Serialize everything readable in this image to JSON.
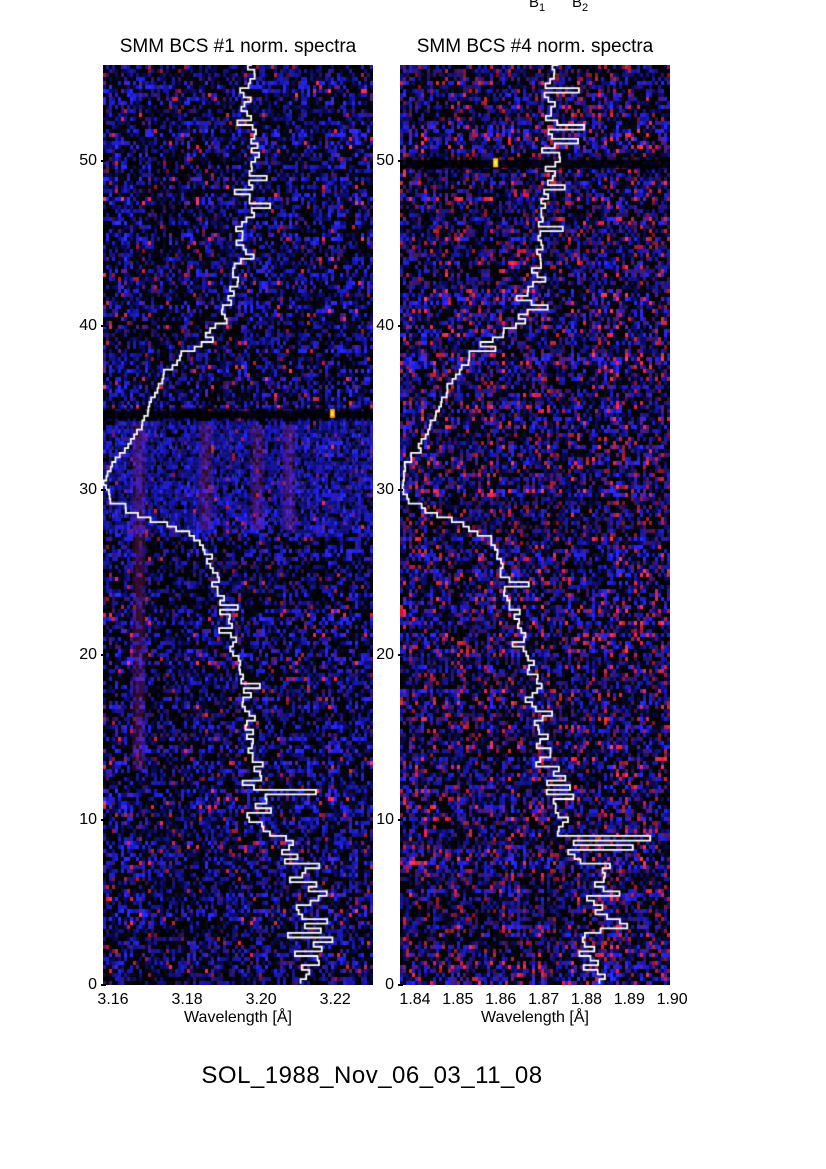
{
  "page": {
    "background": "#ffffff",
    "caption": "SOL_1988_Nov_06_03_11_08"
  },
  "line_labels": [
    {
      "text": "B",
      "sub": "1"
    },
    {
      "text": "B",
      "sub": "2"
    }
  ],
  "chart_data": [
    {
      "type": "heatmap",
      "overlay": "line",
      "title": "SMM BCS #1 norm. spectra",
      "xlabel": "Wavelength [Å]",
      "ylabel": "",
      "legend": "none",
      "grid": false,
      "xlim": [
        3.1573,
        3.2302
      ],
      "ylim": [
        0,
        55.8
      ],
      "xticks": [
        3.16,
        3.18,
        3.2,
        3.22
      ],
      "xtick_labels": [
        "3.16",
        "3.18",
        "3.20",
        "3.22"
      ],
      "yticks": [
        0,
        10,
        20,
        30,
        40,
        50
      ],
      "ytick_labels": [
        "0",
        "10",
        "20",
        "30",
        "40",
        "50"
      ],
      "colormap": {
        "background": "#000000",
        "blue_low": "#0a0a5f",
        "blue_mid": "#1d1dae",
        "blue_high": "#2d2dd8",
        "speckle_red": "#b02040",
        "hot_spot": "#ff9900",
        "trace": "#ffffff"
      },
      "background": {
        "seed": 7,
        "red_density": 0.028,
        "purple_density": 0.06,
        "blue_density": 0.42,
        "bright_band": {
          "v_min": 27.6,
          "v_max": 34.2
        },
        "dark_rows": [
          34.6
        ],
        "stripes": [
          {
            "wl": 3.167,
            "v_min": 13.0,
            "v_max": 34.0
          },
          {
            "wl": 3.185,
            "v_min": 27.6,
            "v_max": 34.0
          },
          {
            "wl": 3.199,
            "v_min": 27.6,
            "v_max": 34.0
          },
          {
            "wl": 3.2075,
            "v_min": 27.6,
            "v_max": 34.0
          }
        ],
        "hot_spots": [
          {
            "wl": 3.2191,
            "v": 34.7
          }
        ]
      },
      "trace": {
        "color": "#ffffff",
        "points": [
          [
            55.8,
            3.197
          ],
          [
            54,
            3.1959
          ],
          [
            52,
            3.1967
          ],
          [
            50,
            3.1978
          ],
          [
            49,
            3.1975
          ],
          [
            48,
            3.1959
          ],
          [
            47,
            3.197
          ],
          [
            46,
            3.1959
          ],
          [
            44.5,
            3.1951
          ],
          [
            43,
            3.1932
          ],
          [
            41.5,
            3.1911
          ],
          [
            40,
            3.1894
          ],
          [
            39,
            3.1848
          ],
          [
            38,
            3.1781
          ],
          [
            37,
            3.174
          ],
          [
            36,
            3.1719
          ],
          [
            35,
            3.17
          ],
          [
            34,
            3.1681
          ],
          [
            33,
            3.1657
          ],
          [
            32,
            3.1619
          ],
          [
            31,
            3.1586
          ],
          [
            30,
            3.1581
          ],
          [
            29.3,
            3.1592
          ],
          [
            28.8,
            3.1614
          ],
          [
            28.3,
            3.1673
          ],
          [
            27.8,
            3.1749
          ],
          [
            27.3,
            3.1797
          ],
          [
            26.7,
            3.183
          ],
          [
            26,
            3.1857
          ],
          [
            25,
            3.1867
          ],
          [
            24,
            3.1881
          ],
          [
            23,
            3.1894
          ],
          [
            22,
            3.1911
          ],
          [
            21,
            3.1921
          ],
          [
            20,
            3.1929
          ],
          [
            19,
            3.194
          ],
          [
            18,
            3.1951
          ],
          [
            17,
            3.1959
          ],
          [
            16,
            3.1965
          ],
          [
            15,
            3.197
          ],
          [
            14,
            3.1973
          ],
          [
            13,
            3.1981
          ],
          [
            12,
            3.2002
          ],
          [
            11,
            3.2019
          ],
          [
            10,
            3.1992
          ],
          [
            9,
            3.2029
          ],
          [
            8,
            3.2064
          ],
          [
            7,
            3.2105
          ],
          [
            6,
            3.2127
          ],
          [
            5,
            3.2145
          ],
          [
            4,
            3.2132
          ],
          [
            3,
            3.214
          ],
          [
            2,
            3.2127
          ],
          [
            1,
            3.2105
          ],
          [
            0,
            3.2097
          ]
        ],
        "noise_amp": [
          [
            0,
            0.008
          ],
          [
            3,
            0.0095
          ],
          [
            8,
            0.0095
          ],
          [
            9,
            0.007
          ],
          [
            13,
            0.007
          ],
          [
            14,
            0.0032
          ],
          [
            18,
            0.0032
          ],
          [
            19,
            0.0027
          ],
          [
            24,
            0.0027
          ],
          [
            25,
            0.0016
          ],
          [
            28,
            0.0011
          ],
          [
            31,
            0.0008
          ],
          [
            37,
            0.0008
          ],
          [
            38,
            0.0022
          ],
          [
            44,
            0.0022
          ],
          [
            45,
            0.0027
          ],
          [
            50,
            0.0027
          ],
          [
            51,
            0.0032
          ],
          [
            55.8,
            0.0032
          ]
        ]
      }
    },
    {
      "type": "heatmap",
      "overlay": "line",
      "title": "SMM BCS #4 norm. spectra",
      "xlabel": "Wavelength [Å]",
      "ylabel": "",
      "legend": "none",
      "grid": false,
      "xlim": [
        1.8365,
        1.8995
      ],
      "ylim": [
        0,
        55.8
      ],
      "xticks": [
        1.84,
        1.85,
        1.86,
        1.87,
        1.88,
        1.89,
        1.9
      ],
      "xtick_labels": [
        "1.84",
        "1.85",
        "1.86",
        "1.87",
        "1.88",
        "1.89",
        "1.90"
      ],
      "yticks": [
        0,
        10,
        20,
        30,
        40,
        50
      ],
      "ytick_labels": [
        "0",
        "10",
        "20",
        "30",
        "40",
        "50"
      ],
      "colormap": {
        "background": "#000000",
        "blue_low": "#0a0a5f",
        "blue_mid": "#1d1dae",
        "blue_high": "#2d2dd8",
        "speckle_red": "#b02040",
        "hot_spot": "#ffcc00",
        "trace": "#ffffff"
      },
      "background": {
        "seed": 13,
        "red_density": 0.085,
        "purple_density": 0.12,
        "blue_density": 0.38,
        "bright_band": null,
        "dark_rows": [
          49.8
        ],
        "stripes": [],
        "hot_spots": [
          {
            "wl": 1.8587,
            "v": 49.9
          }
        ]
      },
      "trace": {
        "color": "#ffffff",
        "points": [
          [
            55.8,
            1.872
          ],
          [
            54,
            1.871
          ],
          [
            52,
            1.8715
          ],
          [
            50,
            1.8727
          ],
          [
            48,
            1.8703
          ],
          [
            46,
            1.8696
          ],
          [
            44.5,
            1.8692
          ],
          [
            43,
            1.8678
          ],
          [
            41.5,
            1.8664
          ],
          [
            40,
            1.8645
          ],
          [
            39,
            1.8575
          ],
          [
            38,
            1.8528
          ],
          [
            37,
            1.85
          ],
          [
            36,
            1.8477
          ],
          [
            35,
            1.8458
          ],
          [
            34,
            1.844
          ],
          [
            33,
            1.8421
          ],
          [
            32,
            1.8393
          ],
          [
            31,
            1.8374
          ],
          [
            30,
            1.8372
          ],
          [
            29.3,
            1.8384
          ],
          [
            28.8,
            1.8407
          ],
          [
            28.3,
            1.8458
          ],
          [
            27.8,
            1.851
          ],
          [
            27.3,
            1.8547
          ],
          [
            26.7,
            1.8575
          ],
          [
            26,
            1.8591
          ],
          [
            25,
            1.8603
          ],
          [
            24,
            1.8615
          ],
          [
            23,
            1.8626
          ],
          [
            22,
            1.864
          ],
          [
            21,
            1.865
          ],
          [
            20,
            1.8659
          ],
          [
            19,
            1.8668
          ],
          [
            18,
            1.8678
          ],
          [
            17,
            1.8685
          ],
          [
            16,
            1.8689
          ],
          [
            15,
            1.8694
          ],
          [
            14,
            1.8699
          ],
          [
            13,
            1.8706
          ],
          [
            12,
            1.8729
          ],
          [
            11,
            1.8743
          ],
          [
            10,
            1.872
          ],
          [
            9,
            1.8752
          ],
          [
            8,
            1.878
          ],
          [
            7,
            1.8808
          ],
          [
            6,
            1.8827
          ],
          [
            5,
            1.885
          ],
          [
            4,
            1.8832
          ],
          [
            3,
            1.8843
          ],
          [
            2,
            1.8827
          ],
          [
            1,
            1.8813
          ],
          [
            0,
            1.8808
          ]
        ],
        "noise_amp": [
          [
            0,
            0.007
          ],
          [
            3,
            0.0095
          ],
          [
            8,
            0.0095
          ],
          [
            9,
            0.0058
          ],
          [
            13,
            0.0058
          ],
          [
            14,
            0.0028
          ],
          [
            18,
            0.0028
          ],
          [
            19,
            0.0023
          ],
          [
            24,
            0.0023
          ],
          [
            25,
            0.0014
          ],
          [
            28,
            0.0009
          ],
          [
            31,
            0.0007
          ],
          [
            37,
            0.0007
          ],
          [
            38,
            0.0019
          ],
          [
            44,
            0.0019
          ],
          [
            45,
            0.0023
          ],
          [
            50,
            0.0023
          ],
          [
            51,
            0.0028
          ],
          [
            55.8,
            0.0028
          ]
        ]
      }
    }
  ]
}
